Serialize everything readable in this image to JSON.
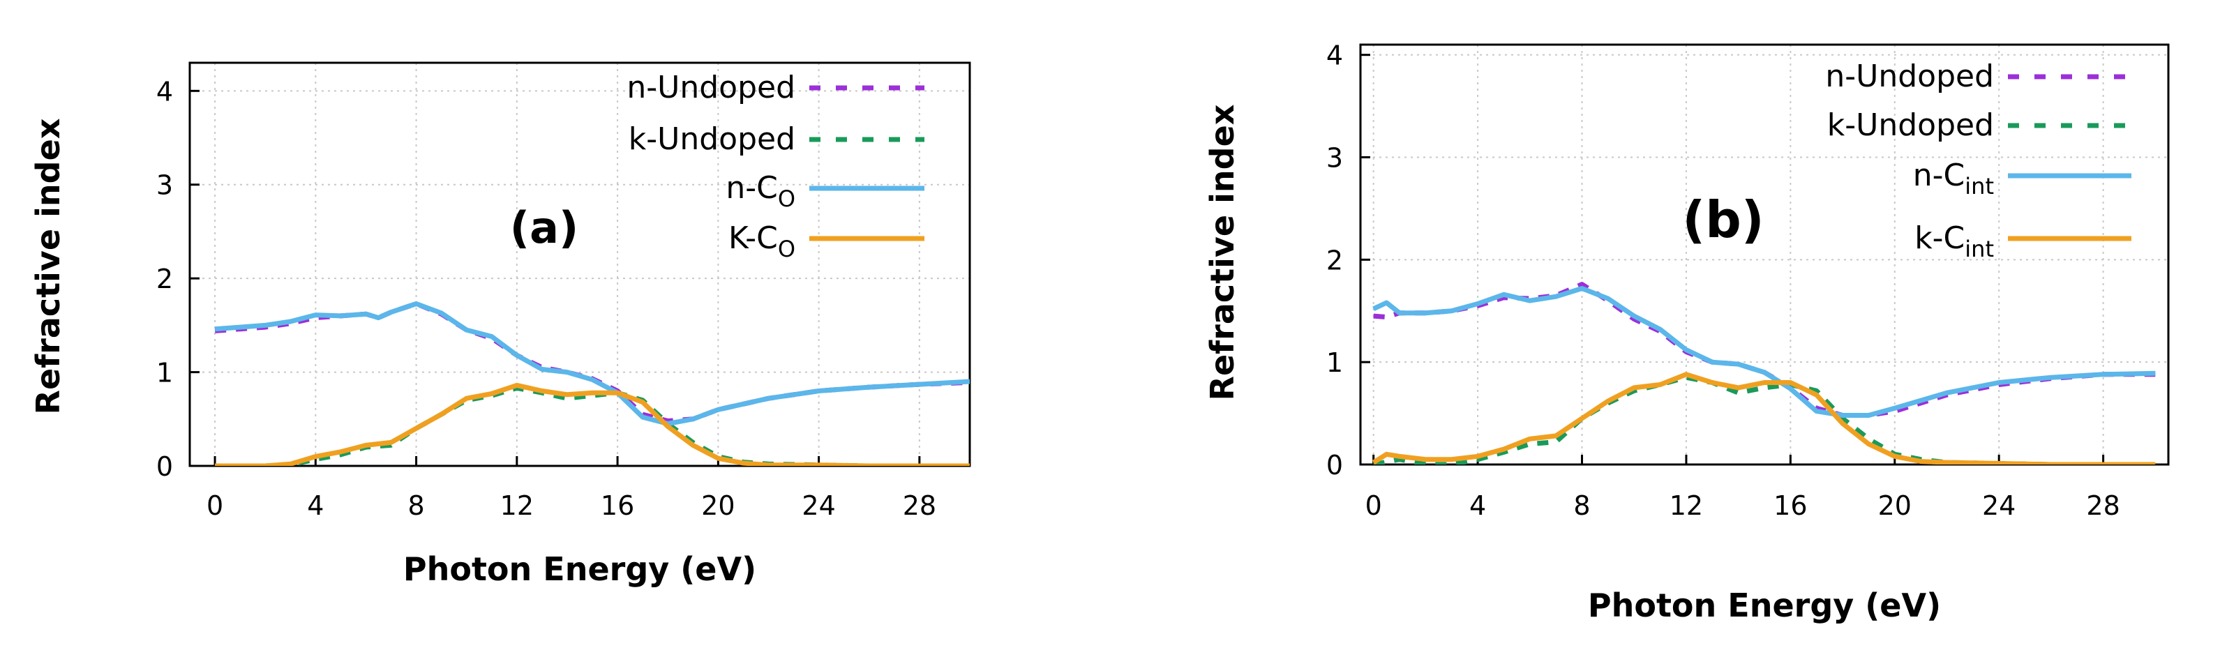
{
  "chart_data": [
    {
      "type": "line",
      "panel_label": "(a)",
      "xlabel": "Photon Energy (eV)",
      "ylabel": "Refractive index",
      "xlim": [
        -1,
        30
      ],
      "ylim": [
        0,
        4.3
      ],
      "xticks": [
        "0",
        "4",
        "8",
        "12",
        "16",
        "20",
        "24",
        "28"
      ],
      "yticks": [
        "0",
        "1",
        "2",
        "3",
        "4"
      ],
      "grid": true,
      "legend_position": "top-right",
      "series": [
        {
          "name": "n-Undoped",
          "sub": "",
          "color": "#9B2FD8",
          "dash": true,
          "x": [
            0,
            1,
            2,
            3,
            4,
            5,
            6,
            6.5,
            7,
            8,
            9,
            10,
            11,
            12,
            13,
            14,
            15,
            16,
            17,
            18,
            19,
            20,
            22,
            24,
            26,
            28,
            30
          ],
          "y": [
            1.44,
            1.46,
            1.48,
            1.52,
            1.58,
            1.6,
            1.62,
            1.58,
            1.64,
            1.73,
            1.62,
            1.45,
            1.36,
            1.18,
            1.05,
            1.0,
            0.93,
            0.8,
            0.55,
            0.48,
            0.5,
            0.6,
            0.72,
            0.8,
            0.84,
            0.87,
            0.89
          ]
        },
        {
          "name": "k-Undoped",
          "sub": "",
          "color": "#1A9A5A",
          "dash": true,
          "x": [
            0,
            1,
            2,
            3,
            4,
            5,
            6,
            7,
            8,
            9,
            10,
            11,
            12,
            13,
            14,
            15,
            16,
            17,
            18,
            19,
            20,
            21,
            22,
            24,
            26,
            28,
            30
          ],
          "y": [
            0,
            0,
            0,
            0.01,
            0.07,
            0.12,
            0.2,
            0.22,
            0.4,
            0.55,
            0.7,
            0.75,
            0.83,
            0.78,
            0.72,
            0.75,
            0.78,
            0.7,
            0.45,
            0.25,
            0.1,
            0.04,
            0.02,
            0.01,
            0,
            0,
            0
          ]
        },
        {
          "name": "n-C",
          "sub": "O",
          "color": "#5BB6EA",
          "dash": false,
          "x": [
            0,
            1,
            2,
            3,
            4,
            5,
            6,
            6.5,
            7,
            8,
            9,
            10,
            11,
            12,
            13,
            14,
            15,
            16,
            17,
            18,
            19,
            20,
            22,
            24,
            26,
            28,
            30
          ],
          "y": [
            1.46,
            1.48,
            1.5,
            1.54,
            1.61,
            1.6,
            1.62,
            1.58,
            1.64,
            1.73,
            1.63,
            1.45,
            1.38,
            1.18,
            1.03,
            1.0,
            0.92,
            0.78,
            0.52,
            0.45,
            0.5,
            0.6,
            0.72,
            0.8,
            0.84,
            0.87,
            0.9
          ]
        },
        {
          "name": "K-C",
          "sub": "O",
          "color": "#F0A020",
          "dash": false,
          "x": [
            0,
            1,
            2,
            3,
            4,
            5,
            6,
            7,
            8,
            9,
            10,
            11,
            12,
            13,
            14,
            15,
            16,
            17,
            18,
            19,
            20,
            21,
            22,
            24,
            26,
            28,
            30
          ],
          "y": [
            0,
            0,
            0,
            0.02,
            0.1,
            0.15,
            0.22,
            0.25,
            0.4,
            0.55,
            0.72,
            0.77,
            0.86,
            0.8,
            0.76,
            0.78,
            0.78,
            0.68,
            0.42,
            0.22,
            0.08,
            0.03,
            0.01,
            0.01,
            0,
            0,
            0
          ]
        }
      ]
    },
    {
      "type": "line",
      "panel_label": "(b)",
      "xlabel": "Photon Energy (eV)",
      "ylabel": "Refractive index",
      "xlim": [
        -0.5,
        30.5
      ],
      "ylim": [
        0,
        4.1
      ],
      "xticks": [
        "0",
        "4",
        "8",
        "12",
        "16",
        "20",
        "24",
        "28"
      ],
      "yticks": [
        "0",
        "1",
        "2",
        "3",
        "4"
      ],
      "grid": true,
      "legend_position": "top-right",
      "series": [
        {
          "name": "n-Undoped",
          "sub": "",
          "color": "#9B2FD8",
          "dash": true,
          "x": [
            0,
            0.5,
            1,
            2,
            3,
            4,
            5,
            6,
            7,
            8,
            9,
            10,
            11,
            12,
            13,
            14,
            15,
            16,
            17,
            18,
            19,
            20,
            22,
            24,
            26,
            28,
            30
          ],
          "y": [
            1.45,
            1.44,
            1.48,
            1.48,
            1.5,
            1.55,
            1.63,
            1.62,
            1.65,
            1.76,
            1.6,
            1.42,
            1.3,
            1.1,
            1.0,
            0.98,
            0.9,
            0.75,
            0.55,
            0.48,
            0.48,
            0.52,
            0.68,
            0.78,
            0.84,
            0.88,
            0.88
          ]
        },
        {
          "name": "k-Undoped",
          "sub": "",
          "color": "#1A9A5A",
          "dash": true,
          "x": [
            0,
            1,
            2,
            3,
            4,
            5,
            6,
            7,
            8,
            9,
            10,
            11,
            12,
            13,
            14,
            15,
            16,
            17,
            18,
            19,
            20,
            21,
            22,
            24,
            26,
            28,
            30
          ],
          "y": [
            0,
            0.05,
            0,
            0,
            0.05,
            0.12,
            0.2,
            0.22,
            0.45,
            0.6,
            0.72,
            0.78,
            0.85,
            0.8,
            0.7,
            0.75,
            0.78,
            0.72,
            0.45,
            0.25,
            0.1,
            0.05,
            0.02,
            0.01,
            0,
            0,
            0
          ]
        },
        {
          "name": "n-C",
          "sub": "int",
          "color": "#5BB6EA",
          "dash": false,
          "x": [
            0,
            0.5,
            1,
            2,
            3,
            4,
            5,
            6,
            7,
            8,
            9,
            10,
            11,
            12,
            13,
            14,
            15,
            16,
            17,
            18,
            19,
            20,
            22,
            24,
            26,
            28,
            30
          ],
          "y": [
            1.52,
            1.58,
            1.48,
            1.48,
            1.5,
            1.57,
            1.66,
            1.6,
            1.64,
            1.72,
            1.62,
            1.45,
            1.32,
            1.12,
            1.0,
            0.98,
            0.9,
            0.74,
            0.52,
            0.48,
            0.48,
            0.55,
            0.7,
            0.8,
            0.85,
            0.88,
            0.89
          ]
        },
        {
          "name": "k-C",
          "sub": "int",
          "color": "#F0A020",
          "dash": false,
          "x": [
            0,
            0.5,
            1,
            2,
            3,
            4,
            5,
            6,
            7,
            8,
            9,
            10,
            11,
            12,
            13,
            14,
            15,
            16,
            17,
            18,
            19,
            20,
            21,
            22,
            24,
            26,
            28,
            30
          ],
          "y": [
            0.02,
            0.1,
            0.08,
            0.05,
            0.05,
            0.08,
            0.15,
            0.25,
            0.28,
            0.45,
            0.62,
            0.75,
            0.78,
            0.88,
            0.8,
            0.75,
            0.8,
            0.8,
            0.68,
            0.4,
            0.2,
            0.08,
            0.03,
            0.02,
            0.01,
            0,
            0,
            0
          ]
        }
      ]
    }
  ]
}
